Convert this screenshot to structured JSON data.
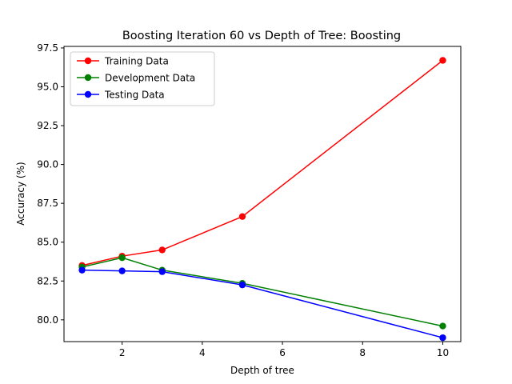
{
  "chart_data": {
    "type": "line",
    "title": "Boosting Iteration 60 vs Depth of Tree: Boosting",
    "xlabel": "Depth of tree",
    "ylabel": "Accuracy (%)",
    "xlim": [
      0.55,
      10.45
    ],
    "ylim": [
      78.6,
      97.6
    ],
    "xticks": [
      2,
      4,
      6,
      8,
      10
    ],
    "xtick_labels": [
      "2",
      "4",
      "6",
      "8",
      "10"
    ],
    "yticks": [
      80.0,
      82.5,
      85.0,
      87.5,
      90.0,
      92.5,
      95.0,
      97.5
    ],
    "ytick_labels": [
      "80.0",
      "82.5",
      "85.0",
      "87.5",
      "90.0",
      "92.5",
      "95.0",
      "97.5"
    ],
    "grid": false,
    "legend_position": "top-left",
    "x": [
      1,
      2,
      3,
      5,
      10
    ],
    "series": [
      {
        "name": "Training Data",
        "color": "#ff0000",
        "values": [
          83.5,
          84.1,
          84.5,
          86.65,
          96.7
        ]
      },
      {
        "name": "Development Data",
        "color": "#008000",
        "values": [
          83.4,
          84.0,
          83.2,
          82.35,
          79.6
        ]
      },
      {
        "name": "Testing Data",
        "color": "#0000ff",
        "values": [
          83.2,
          83.15,
          83.1,
          82.25,
          78.85
        ]
      }
    ]
  }
}
